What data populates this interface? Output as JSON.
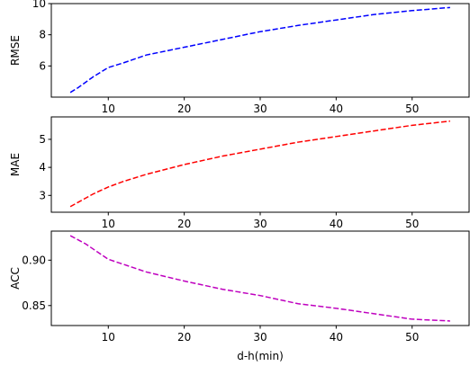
{
  "chart_data": [
    {
      "type": "line",
      "title": "",
      "xlabel": "",
      "ylabel": "RMSE",
      "xlim": [
        2.5,
        57.5
      ],
      "ylim": [
        4.0,
        10.0
      ],
      "xticks": [
        10,
        20,
        30,
        40,
        50
      ],
      "yticks": [
        6,
        8,
        10
      ],
      "color": "#0000ff",
      "line_style": "dashed",
      "x": [
        5,
        6,
        8,
        10,
        12,
        15,
        20,
        25,
        30,
        35,
        40,
        45,
        50,
        55
      ],
      "y": [
        4.3,
        4.6,
        5.3,
        5.9,
        6.2,
        6.7,
        7.2,
        7.7,
        8.2,
        8.6,
        8.95,
        9.3,
        9.55,
        9.75
      ]
    },
    {
      "type": "line",
      "title": "",
      "xlabel": "",
      "ylabel": "MAE",
      "xlim": [
        2.5,
        57.5
      ],
      "ylim": [
        2.4,
        5.8
      ],
      "xticks": [
        10,
        20,
        30,
        40,
        50
      ],
      "yticks": [
        3,
        4,
        5
      ],
      "color": "#ff0000",
      "line_style": "dashed",
      "x": [
        5,
        6,
        8,
        10,
        12,
        15,
        20,
        25,
        30,
        35,
        40,
        45,
        50,
        55
      ],
      "y": [
        2.6,
        2.75,
        3.05,
        3.3,
        3.5,
        3.75,
        4.1,
        4.4,
        4.65,
        4.9,
        5.1,
        5.3,
        5.5,
        5.65
      ]
    },
    {
      "type": "line",
      "title": "",
      "xlabel": "d-h(min)",
      "ylabel": "ACC",
      "xlim": [
        2.5,
        57.5
      ],
      "ylim": [
        0.828,
        0.932
      ],
      "xticks": [
        10,
        20,
        30,
        40,
        50
      ],
      "yticks": [
        0.85,
        0.9
      ],
      "ytick_labels": [
        "0.85",
        "0.90"
      ],
      "color": "#bf00bf",
      "line_style": "dashed",
      "x": [
        5,
        7,
        10,
        15,
        20,
        25,
        30,
        35,
        40,
        45,
        50,
        55
      ],
      "y": [
        0.927,
        0.918,
        0.901,
        0.887,
        0.877,
        0.868,
        0.861,
        0.852,
        0.847,
        0.841,
        0.835,
        0.833
      ]
    }
  ]
}
